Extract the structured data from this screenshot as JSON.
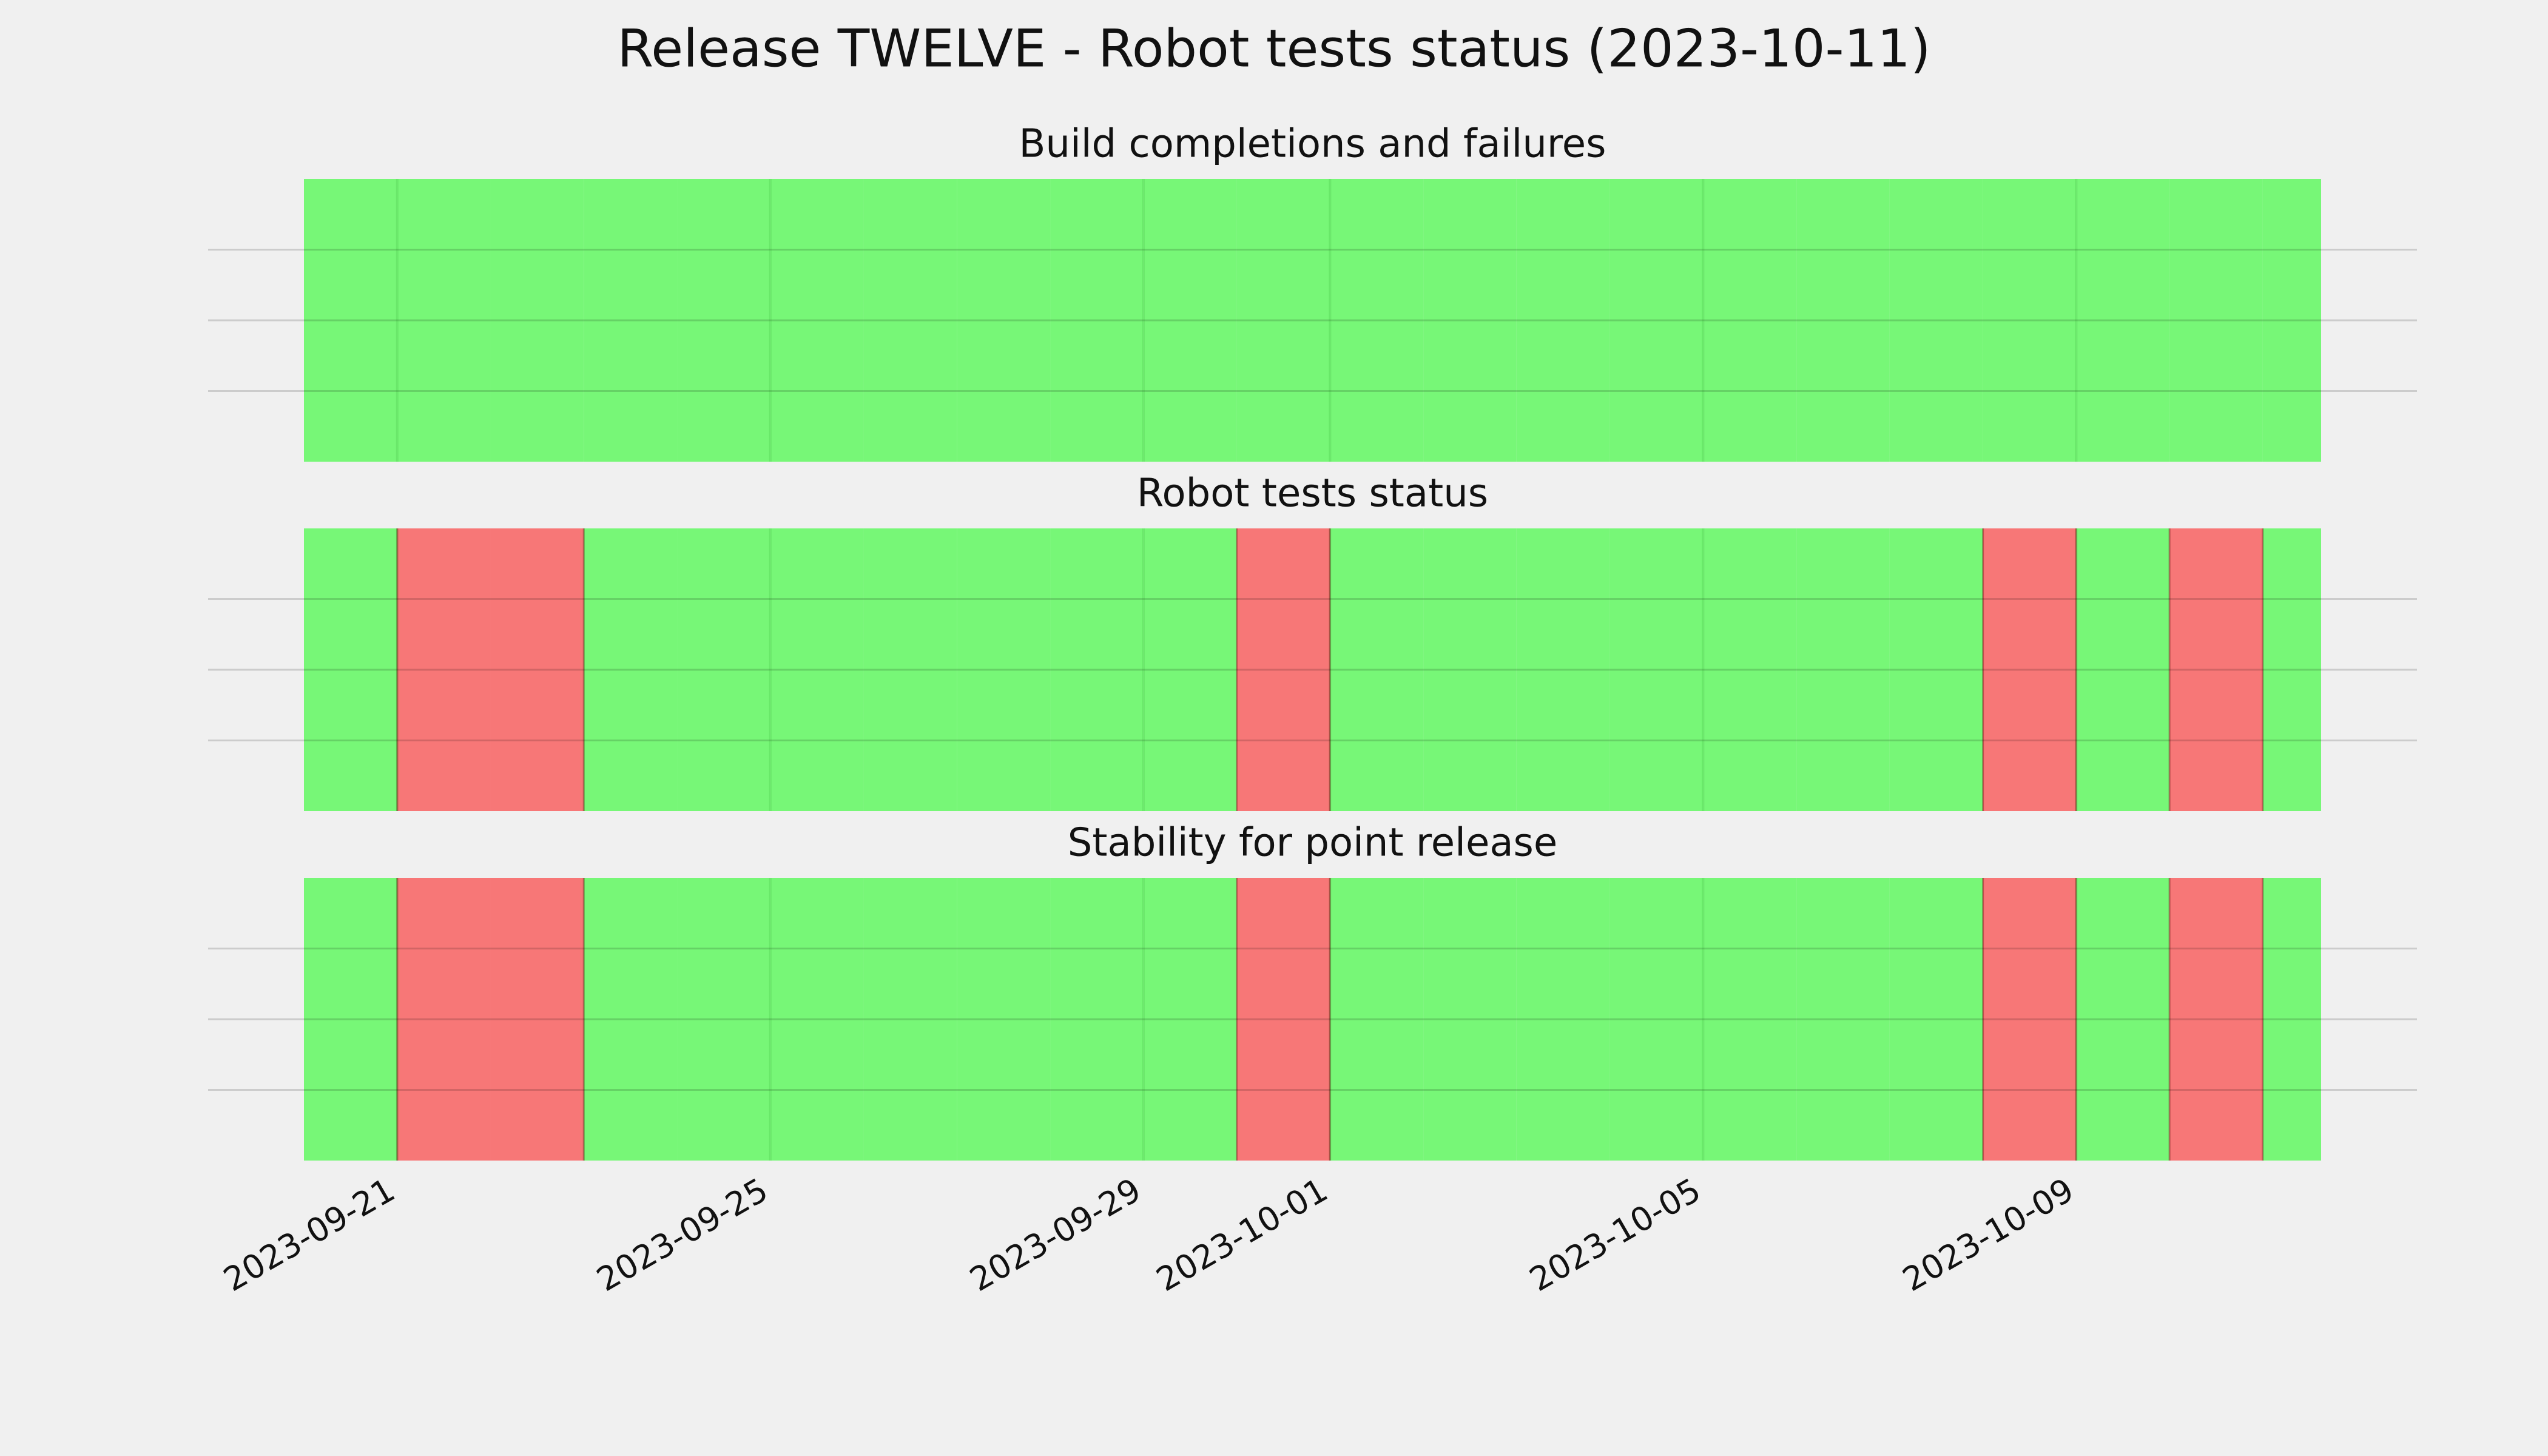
{
  "title": "Release TWELVE - Robot tests status (2023-10-11)",
  "chart_data": [
    {
      "type": "timeline",
      "title": "Build completions and failures",
      "x": [
        "2023-09-20",
        "2023-09-21",
        "2023-09-22",
        "2023-09-23",
        "2023-09-24",
        "2023-09-25",
        "2023-09-26",
        "2023-09-27",
        "2023-09-28",
        "2023-09-29",
        "2023-09-30",
        "2023-10-01",
        "2023-10-02",
        "2023-10-03",
        "2023-10-04",
        "2023-10-05",
        "2023-10-06",
        "2023-10-07",
        "2023-10-08",
        "2023-10-09",
        "2023-10-10",
        "2023-10-11"
      ],
      "colors": [
        "#77f777",
        "#77f777",
        "#77f777",
        "#77f777",
        "#77f777",
        "#77f777",
        "#77f777",
        "#77f777",
        "#77f777",
        "#77f777",
        "#77f777",
        "#77f777",
        "#77f777",
        "#77f777",
        "#77f777",
        "#77f777",
        "#77f777",
        "#77f777",
        "#77f777",
        "#77f777",
        "#77f777",
        "#77f777"
      ],
      "xlim": [
        "2023-09-20",
        "2023-10-11 15:00"
      ],
      "xticks": [
        "2023-09-21",
        "2023-09-25",
        "2023-09-29",
        "2023-10-01",
        "2023-10-05",
        "2023-10-09"
      ],
      "ylim": [
        0,
        1
      ],
      "yticks": [
        0.25,
        0.5,
        0.75
      ],
      "grid": true
    },
    {
      "type": "timeline",
      "title": "Robot tests status",
      "x": [
        "2023-09-20",
        "2023-09-21",
        "2023-09-22",
        "2023-09-23",
        "2023-09-24",
        "2023-09-25",
        "2023-09-26",
        "2023-09-27",
        "2023-09-28",
        "2023-09-29",
        "2023-09-30",
        "2023-10-01",
        "2023-10-02",
        "2023-10-03",
        "2023-10-04",
        "2023-10-05",
        "2023-10-06",
        "2023-10-07",
        "2023-10-08",
        "2023-10-09",
        "2023-10-10",
        "2023-10-11"
      ],
      "colors": [
        "#77f777",
        "#f77777",
        "#f77777",
        "#77f777",
        "#77f777",
        "#77f777",
        "#77f777",
        "#77f777",
        "#77f777",
        "#77f777",
        "#f77777",
        "#77f777",
        "#77f777",
        "#77f777",
        "#77f777",
        "#77f777",
        "#77f777",
        "#77f777",
        "#f77777",
        "#77f777",
        "#f77777",
        "#77f777"
      ],
      "xlim": [
        "2023-09-20",
        "2023-10-11 15:00"
      ],
      "xticks": [
        "2023-09-21",
        "2023-09-25",
        "2023-09-29",
        "2023-10-01",
        "2023-10-05",
        "2023-10-09"
      ],
      "ylim": [
        0,
        1
      ],
      "yticks": [
        0.25,
        0.5,
        0.75
      ],
      "grid": true
    },
    {
      "type": "timeline",
      "title": "Stability for point release",
      "x": [
        "2023-09-20",
        "2023-09-21",
        "2023-09-22",
        "2023-09-23",
        "2023-09-24",
        "2023-09-25",
        "2023-09-26",
        "2023-09-27",
        "2023-09-28",
        "2023-09-29",
        "2023-09-30",
        "2023-10-01",
        "2023-10-02",
        "2023-10-03",
        "2023-10-04",
        "2023-10-05",
        "2023-10-06",
        "2023-10-07",
        "2023-10-08",
        "2023-10-09",
        "2023-10-10",
        "2023-10-11"
      ],
      "colors": [
        "#77f777",
        "#f77777",
        "#f77777",
        "#77f777",
        "#77f777",
        "#77f777",
        "#77f777",
        "#77f777",
        "#77f777",
        "#77f777",
        "#f77777",
        "#77f777",
        "#77f777",
        "#77f777",
        "#77f777",
        "#77f777",
        "#77f777",
        "#77f777",
        "#f77777",
        "#77f777",
        "#f77777",
        "#77f777"
      ],
      "xlim": [
        "2023-09-20",
        "2023-10-11 15:00"
      ],
      "xticks": [
        "2023-09-21",
        "2023-09-25",
        "2023-09-29",
        "2023-10-01",
        "2023-10-05",
        "2023-10-09"
      ],
      "ylim": [
        0,
        1
      ],
      "yticks": [
        0.25,
        0.5,
        0.75
      ],
      "grid": true,
      "show_xtick_labels": true
    }
  ]
}
